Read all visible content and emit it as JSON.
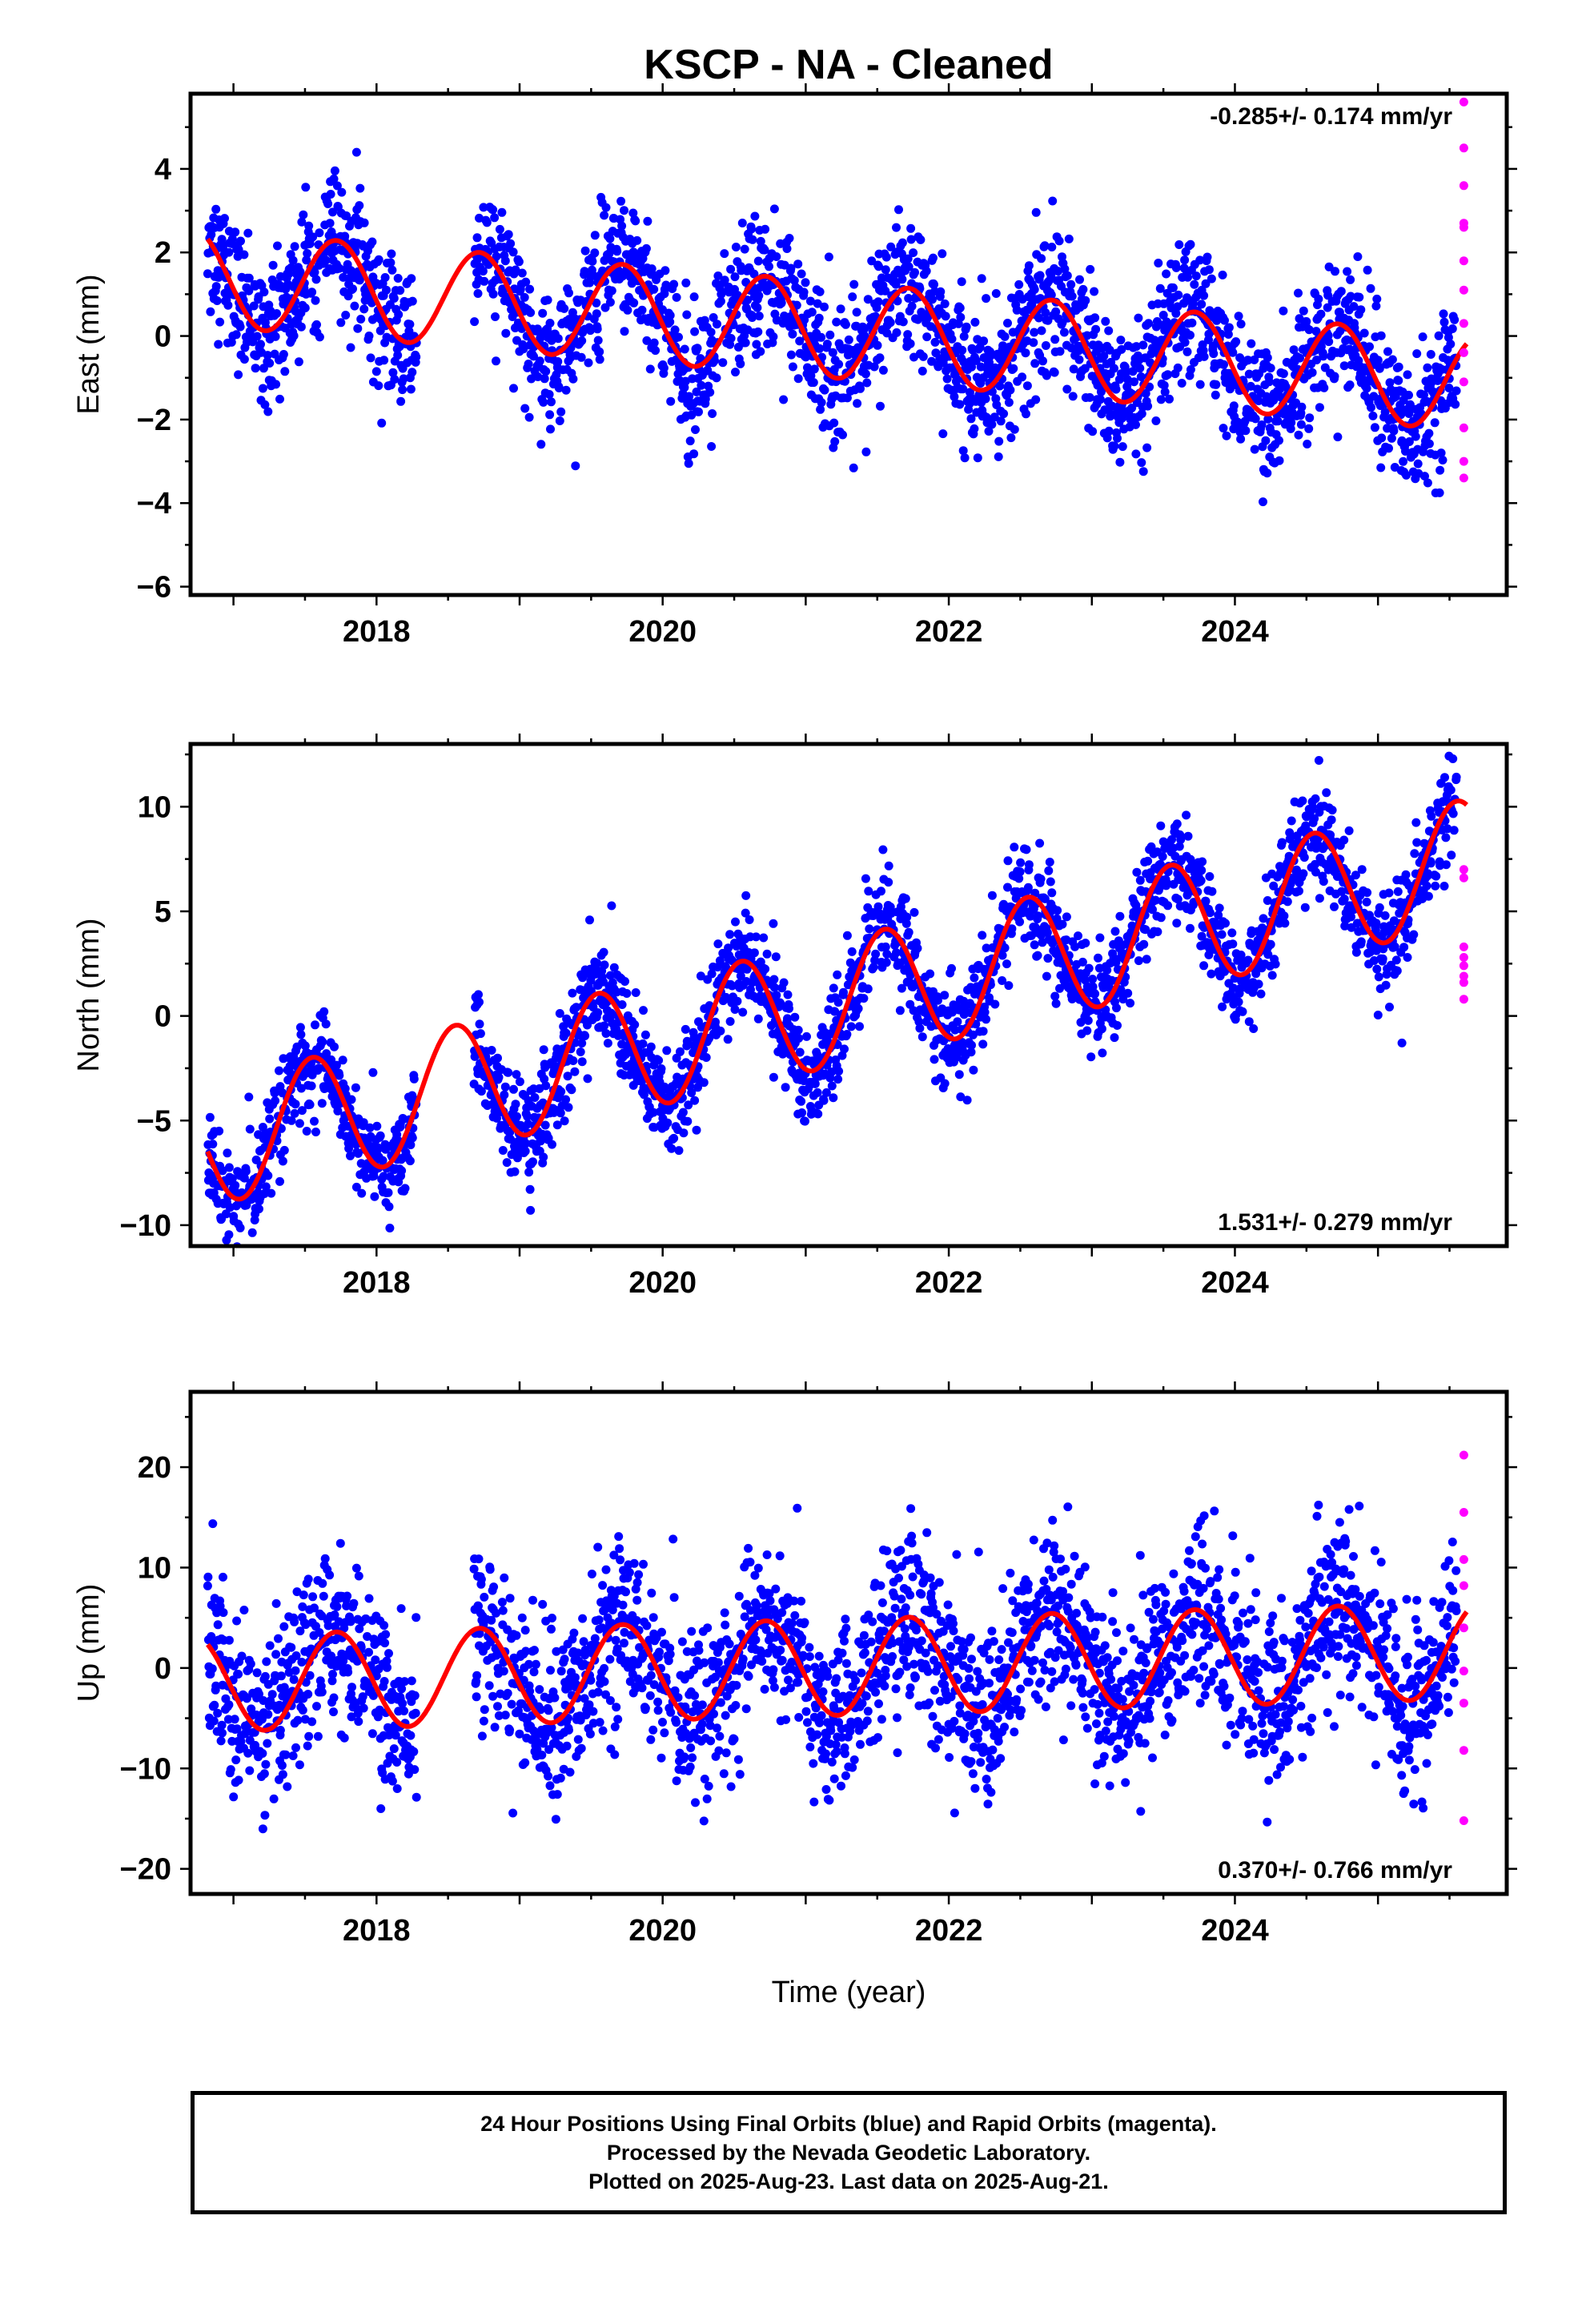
{
  "page_title": "KSCP  - NA - Cleaned",
  "x_axis_title": "Time (year)",
  "caption": [
    "24 Hour Positions Using Final Orbits (blue) and Rapid Orbits (magenta).",
    "Processed by the Nevada Geodetic Laboratory.",
    "Plotted on 2025-Aug-23. Last data on 2025-Aug-21."
  ],
  "colors": {
    "final_orbits": "#0000ff",
    "rapid_orbits": "#ff00ff",
    "model_fit": "#ff0000",
    "frame": "#000000"
  },
  "chart_data": [
    {
      "type": "scatter",
      "component": "east",
      "ylabel": "East (mm)",
      "xlabel": "",
      "xlim": [
        2016.7,
        2025.9
      ],
      "ylim": [
        -6.2,
        5.8
      ],
      "xticks": [
        2018,
        2020,
        2022,
        2024
      ],
      "yticks": [
        -6,
        -4,
        -2,
        0,
        2,
        4
      ],
      "rate_label": "-0.285+/- 0.174 mm/yr",
      "rate_label_position": "top-right",
      "series": [
        {
          "name": "Final Orbits",
          "color": "#0000ff",
          "marker": "dot",
          "model": {
            "trend": -0.285,
            "y_at_2021": 0.2,
            "annual_amp": 1.15,
            "peak_phase": 0.72,
            "noise_sd": 0.8,
            "gaps": [
              [
                2018.28,
                2018.68
              ]
            ],
            "start": 2016.82,
            "end": 2025.55
          }
        },
        {
          "name": "Rapid Orbits",
          "color": "#ff00ff",
          "marker": "dot",
          "x": [
            2025.6,
            2025.6,
            2025.6,
            2025.6,
            2025.6,
            2025.6,
            2025.6,
            2025.6,
            2025.6,
            2025.6,
            2025.6,
            2025.6,
            2025.6
          ],
          "y": [
            5.6,
            4.5,
            3.6,
            2.7,
            2.6,
            1.8,
            1.1,
            0.3,
            -0.4,
            -1.1,
            -2.2,
            -3.0,
            -3.4
          ]
        }
      ],
      "fit": {
        "name": "Model fit",
        "color": "#ff0000",
        "trend": -0.285,
        "y_at_2021": 0.2,
        "annual_amp": 1.15,
        "peak_phase": 0.72,
        "start": 2016.82,
        "end": 2025.62
      }
    },
    {
      "type": "scatter",
      "component": "north",
      "ylabel": "North (mm)",
      "xlabel": "",
      "xlim": [
        2016.7,
        2025.9
      ],
      "ylim": [
        -11,
        13
      ],
      "xticks": [
        2018,
        2020,
        2022,
        2024
      ],
      "yticks": [
        -10,
        -5,
        0,
        5,
        10
      ],
      "rate_label": "1.531+/- 0.279 mm/yr",
      "rate_label_position": "bottom-right",
      "series": [
        {
          "name": "Final Orbits",
          "color": "#0000ff",
          "marker": "dot",
          "model": {
            "trend": 1.531,
            "y_at_2021": 0.3,
            "annual_amp": 3.0,
            "peak_phase": 0.55,
            "noise_sd": 1.2,
            "gaps": [
              [
                2018.28,
                2018.68
              ]
            ],
            "start": 2016.82,
            "end": 2025.55
          }
        },
        {
          "name": "Rapid Orbits",
          "color": "#ff00ff",
          "marker": "dot",
          "x": [
            2025.6,
            2025.6,
            2025.6,
            2025.6,
            2025.6,
            2025.6,
            2025.6,
            2025.6
          ],
          "y": [
            7.0,
            6.6,
            3.3,
            2.8,
            2.4,
            1.9,
            1.6,
            0.8
          ]
        }
      ],
      "fit": {
        "name": "Model fit",
        "color": "#ff0000",
        "trend": 1.531,
        "y_at_2021": 0.3,
        "annual_amp": 3.0,
        "peak_phase": 0.55,
        "start": 2016.82,
        "end": 2025.62
      }
    },
    {
      "type": "scatter",
      "component": "up",
      "ylabel": "Up (mm)",
      "xlabel": "Time (year)",
      "xlim": [
        2016.7,
        2025.9
      ],
      "ylim": [
        -22.5,
        27.5
      ],
      "xticks": [
        2018,
        2020,
        2022,
        2024
      ],
      "yticks": [
        -20,
        -10,
        0,
        10,
        20
      ],
      "rate_label": "0.370+/- 0.766 mm/yr",
      "rate_label_position": "bottom-right",
      "series": [
        {
          "name": "Final Orbits",
          "color": "#0000ff",
          "marker": "dot",
          "model": {
            "trend": 0.37,
            "y_at_2021": 0.0,
            "annual_amp": 4.8,
            "peak_phase": 0.72,
            "noise_sd": 4.2,
            "gaps": [
              [
                2018.28,
                2018.68
              ]
            ],
            "start": 2016.82,
            "end": 2025.55
          }
        },
        {
          "name": "Rapid Orbits",
          "color": "#ff00ff",
          "marker": "dot",
          "x": [
            2025.6,
            2025.6,
            2025.6,
            2025.6,
            2025.6,
            2025.6,
            2025.6,
            2025.6,
            2025.6
          ],
          "y": [
            21.2,
            15.5,
            10.8,
            8.2,
            4.0,
            -0.3,
            -3.5,
            -8.2,
            -15.2
          ]
        }
      ],
      "fit": {
        "name": "Model fit",
        "color": "#ff0000",
        "trend": 0.37,
        "y_at_2021": 0.0,
        "annual_amp": 4.8,
        "peak_phase": 0.72,
        "start": 2016.82,
        "end": 2025.62
      }
    }
  ]
}
